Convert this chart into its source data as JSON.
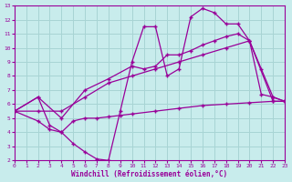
{
  "xlabel": "Windchill (Refroidissement éolien,°C)",
  "bg_color": "#c8ecec",
  "grid_color": "#a8d4d4",
  "line_color": "#990099",
  "xmin": 0,
  "xmax": 23,
  "ymin": 2,
  "ymax": 13,
  "line1_x": [
    0,
    2,
    3,
    4,
    5,
    6,
    7,
    8,
    9,
    10,
    11,
    12,
    13,
    14,
    15,
    16,
    17,
    18,
    19,
    20,
    21,
    22,
    23
  ],
  "line1_y": [
    5.5,
    6.5,
    4.5,
    4.0,
    3.2,
    2.6,
    2.1,
    2.0,
    5.5,
    9.0,
    11.5,
    11.5,
    8.0,
    8.5,
    12.2,
    12.8,
    12.5,
    11.7,
    11.7,
    10.5,
    6.7,
    6.5,
    6.2
  ],
  "line2_x": [
    0,
    2,
    4,
    6,
    8,
    10,
    11,
    12,
    13,
    14,
    15,
    16,
    17,
    18,
    19,
    20,
    21,
    22,
    23
  ],
  "line2_y": [
    5.5,
    6.5,
    5.0,
    7.0,
    7.8,
    8.7,
    8.5,
    8.7,
    9.5,
    9.5,
    9.8,
    10.2,
    10.5,
    10.8,
    11.0,
    10.5,
    8.5,
    6.5,
    6.2
  ],
  "line3_x": [
    0,
    2,
    4,
    6,
    8,
    10,
    12,
    14,
    16,
    18,
    20,
    22,
    23
  ],
  "line3_y": [
    5.5,
    5.5,
    5.5,
    6.5,
    7.5,
    8.0,
    8.5,
    9.0,
    9.5,
    10.0,
    10.5,
    6.2,
    6.2
  ],
  "line4_x": [
    0,
    2,
    3,
    4,
    5,
    6,
    7,
    8,
    9,
    10,
    12,
    14,
    16,
    18,
    20,
    22,
    23
  ],
  "line4_y": [
    5.5,
    4.8,
    4.2,
    4.0,
    4.8,
    5.0,
    5.0,
    5.1,
    5.2,
    5.3,
    5.5,
    5.7,
    5.9,
    6.0,
    6.1,
    6.2,
    6.2
  ]
}
